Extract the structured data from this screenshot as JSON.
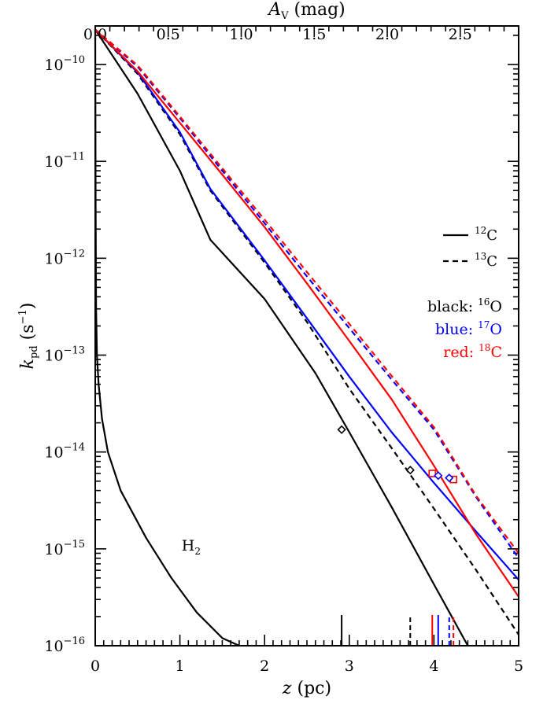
{
  "chart_data": {
    "type": "line",
    "title": "",
    "xlabel": {
      "main": "z",
      "unit": " (pc)"
    },
    "top_xlabel": {
      "main": "A",
      "sub": "V",
      "unit": " (mag)"
    },
    "ylabel": {
      "main": "k",
      "sub": "pd",
      "unit_pre": " (s",
      "unit_exp": "−1",
      "unit_post": ")"
    },
    "xlim": [
      0,
      5
    ],
    "top_xlim": [
      0,
      2.9
    ],
    "ylim": [
      1e-16,
      2.5e-10
    ],
    "yscale": "log",
    "x_ticks": [
      {
        "v": 0,
        "label": "0"
      },
      {
        "v": 1,
        "label": "1"
      },
      {
        "v": 2,
        "label": "2"
      },
      {
        "v": 3,
        "label": "3"
      },
      {
        "v": 4,
        "label": "4"
      },
      {
        "v": 5,
        "label": "5"
      }
    ],
    "top_x_ticks": [
      {
        "v": 0.0,
        "label": "0.0"
      },
      {
        "v": 0.5,
        "label": "0.5"
      },
      {
        "v": 1.0,
        "label": "1.0"
      },
      {
        "v": 1.5,
        "label": "1.5"
      },
      {
        "v": 2.0,
        "label": "2.0"
      },
      {
        "v": 2.5,
        "label": "2.5"
      }
    ],
    "y_ticks": [
      {
        "v": 1e-10,
        "label": "10",
        "exp": "−10"
      },
      {
        "v": 1e-11,
        "label": "10",
        "exp": "−11"
      },
      {
        "v": 1e-12,
        "label": "10",
        "exp": "−12"
      },
      {
        "v": 1e-13,
        "label": "10",
        "exp": "−13"
      },
      {
        "v": 1e-14,
        "label": "10",
        "exp": "−14"
      },
      {
        "v": 1e-15,
        "label": "10",
        "exp": "−15"
      },
      {
        "v": 1e-16,
        "label": "10",
        "exp": "−16"
      }
    ],
    "colors": {
      "black": "#000000",
      "blue": "#0000ff",
      "red": "#ff0000"
    },
    "legend": {
      "placement": "right",
      "styles": [
        {
          "dash": "solid",
          "iso": "12",
          "elem": "C"
        },
        {
          "dash": "dashed",
          "iso": "13",
          "elem": "C"
        }
      ],
      "colors": [
        {
          "name": "black: ",
          "iso": "16",
          "elem": "O",
          "color": "#000000"
        },
        {
          "name": "blue: ",
          "iso": "17",
          "elem": "O",
          "color": "#0000ff"
        },
        {
          "name": "red: ",
          "iso": "18",
          "elem": "C",
          "color": "#ff0000"
        }
      ]
    },
    "annotations": [
      {
        "text": "H",
        "sub": "2",
        "x": 1.02,
        "y": 8e-16
      }
    ],
    "series": [
      {
        "id": "h2",
        "color": "#000000",
        "dash": "solid",
        "x": [
          0,
          0.005,
          0.01,
          0.02,
          0.04,
          0.08,
          0.15,
          0.3,
          0.6,
          0.9,
          1.2,
          1.5,
          1.7
        ],
        "y": [
          2.3e-10,
          4e-12,
          3e-13,
          1e-13,
          5e-14,
          2.2e-14,
          1e-14,
          4e-15,
          1.3e-15,
          5e-16,
          2.2e-16,
          1.2e-16,
          9e-17
        ]
      },
      {
        "id": "c12o16",
        "color": "#000000",
        "dash": "solid",
        "x": [
          0,
          0.5,
          1.0,
          1.36,
          2.0,
          2.6,
          3.0,
          3.5,
          4.0,
          4.4
        ],
        "y": [
          2.3e-10,
          5e-11,
          8e-12,
          1.55e-12,
          3.8e-13,
          6.5e-14,
          1.6e-14,
          2.7e-15,
          4.3e-16,
          9e-17
        ]
      },
      {
        "id": "c13o16",
        "color": "#000000",
        "dash": "dashed",
        "x": [
          0,
          0.5,
          1.0,
          1.36,
          2.0,
          2.5,
          3.0,
          3.5,
          4.0,
          4.5,
          5.0
        ],
        "y": [
          2.3e-10,
          8e-11,
          1.9e-11,
          5e-12,
          9e-13,
          2.2e-13,
          4.5e-14,
          1.1e-14,
          2.6e-15,
          6e-16,
          1.3e-16
        ]
      },
      {
        "id": "c12o17",
        "color": "#0000ff",
        "dash": "solid",
        "x": [
          0,
          0.5,
          1.0,
          1.36,
          2.0,
          2.5,
          3.0,
          3.5,
          4.0,
          4.5,
          5.0
        ],
        "y": [
          2.3e-10,
          8.3e-11,
          2e-11,
          5.2e-12,
          9.5e-13,
          2.4e-13,
          6e-14,
          1.6e-14,
          4.8e-15,
          1.5e-15,
          4.8e-16
        ]
      },
      {
        "id": "c13o17",
        "color": "#0000ff",
        "dash": "dashed",
        "x": [
          0,
          0.5,
          1.0,
          1.5,
          2.0,
          2.5,
          3.0,
          3.5,
          4.0,
          4.5,
          5.0
        ],
        "y": [
          2.3e-10,
          9.5e-11,
          2.8e-11,
          8e-12,
          2.3e-12,
          6.5e-13,
          1.9e-13,
          5.6e-14,
          1.7e-14,
          3.4e-15,
          8e-16
        ]
      },
      {
        "id": "c12c18",
        "color": "#ff0000",
        "dash": "solid",
        "x": [
          0,
          0.5,
          1.0,
          1.5,
          2.0,
          2.5,
          3.0,
          3.5,
          4.0,
          4.5,
          5.0
        ],
        "y": [
          2.3e-10,
          8.5e-11,
          2.5e-11,
          7.3e-12,
          2.1e-12,
          5.5e-13,
          1.4e-13,
          3.5e-14,
          7.2e-15,
          1.4e-15,
          3.2e-16
        ]
      },
      {
        "id": "c13c18",
        "color": "#ff0000",
        "dash": "dashed",
        "x": [
          0,
          0.5,
          1.0,
          1.5,
          2.0,
          2.5,
          3.0,
          3.5,
          4.0,
          4.5,
          5.0
        ],
        "y": [
          2.3e-10,
          9.8e-11,
          2.9e-11,
          8.5e-12,
          2.5e-12,
          7.2e-13,
          2.1e-13,
          6.1e-14,
          1.8e-14,
          3.5e-15,
          9e-16
        ]
      }
    ],
    "markers": [
      {
        "series": "c12o16",
        "shape": "diamond",
        "color": "#000000",
        "x": 2.91,
        "y": 1.7e-14
      },
      {
        "series": "c13o16",
        "shape": "diamond",
        "color": "#000000",
        "x": 3.72,
        "y": 6.5e-15
      },
      {
        "series": "c12c18",
        "shape": "square",
        "color": "#ff0000",
        "x": 3.98,
        "y": 6e-15
      },
      {
        "series": "c12o17",
        "shape": "diamond",
        "color": "#0000ff",
        "x": 4.05,
        "y": 5.7e-15
      },
      {
        "series": "c13c18",
        "shape": "square",
        "color": "#ff0000",
        "x": 4.23,
        "y": 5.2e-15
      },
      {
        "series": "c13o17",
        "shape": "diamond",
        "color": "#0000ff",
        "x": 4.18,
        "y": 5.4e-15
      }
    ],
    "bottom_markers": [
      {
        "x": 2.91,
        "color": "#000000",
        "dash": "solid"
      },
      {
        "x": 3.72,
        "color": "#000000",
        "dash": "dashed"
      },
      {
        "x": 3.98,
        "color": "#ff0000",
        "dash": "solid"
      },
      {
        "x": 4.05,
        "color": "#0000ff",
        "dash": "solid"
      },
      {
        "x": 4.18,
        "color": "#0000ff",
        "dash": "dashed"
      },
      {
        "x": 4.23,
        "color": "#ff0000",
        "dash": "dashed"
      }
    ]
  }
}
